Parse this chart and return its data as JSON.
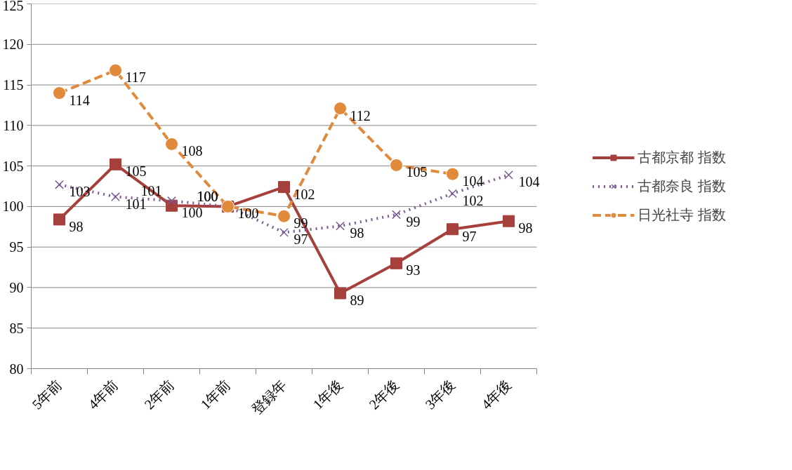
{
  "chart_data": {
    "type": "line",
    "categories": [
      "5年前",
      "4年前",
      "2年前",
      "1年前",
      "登録年",
      "1年後",
      "2年後",
      "3年後",
      "4年後"
    ],
    "series": [
      {
        "name": "古都京都 指数",
        "color": "#a5403d",
        "marker": "square",
        "line_style": "solid",
        "values": [
          98.4,
          105.2,
          100.1,
          100.0,
          102.4,
          89.3,
          93.0,
          97.2,
          98.2
        ],
        "value_labels": [
          "98",
          "105",
          "100",
          "100",
          "102",
          "89",
          "93",
          "97",
          "98"
        ]
      },
      {
        "name": "古都奈良 指数",
        "color": "#7a5a95",
        "marker": "cross",
        "line_style": "dotted",
        "values": [
          102.7,
          101.2,
          100.7,
          100.0,
          96.8,
          97.6,
          99.0,
          101.6,
          103.9
        ],
        "value_labels": [
          "103",
          "101",
          "101",
          "100",
          "97",
          "98",
          "99",
          "102",
          "104"
        ]
      },
      {
        "name": "日光社寺 指数",
        "color": "#e08a3c",
        "marker": "circle",
        "line_style": "dashed",
        "values": [
          114.0,
          116.8,
          107.7,
          100.0,
          98.8,
          112.1,
          105.1,
          104.0,
          null
        ],
        "value_labels": [
          "114",
          "117",
          "108",
          "100",
          "99",
          "112",
          "105",
          "104",
          null
        ]
      }
    ],
    "ylim": [
      80,
      125
    ],
    "yticks": [
      80,
      85,
      90,
      95,
      100,
      105,
      110,
      115,
      120,
      125
    ],
    "grid": "y",
    "legend": "right"
  }
}
